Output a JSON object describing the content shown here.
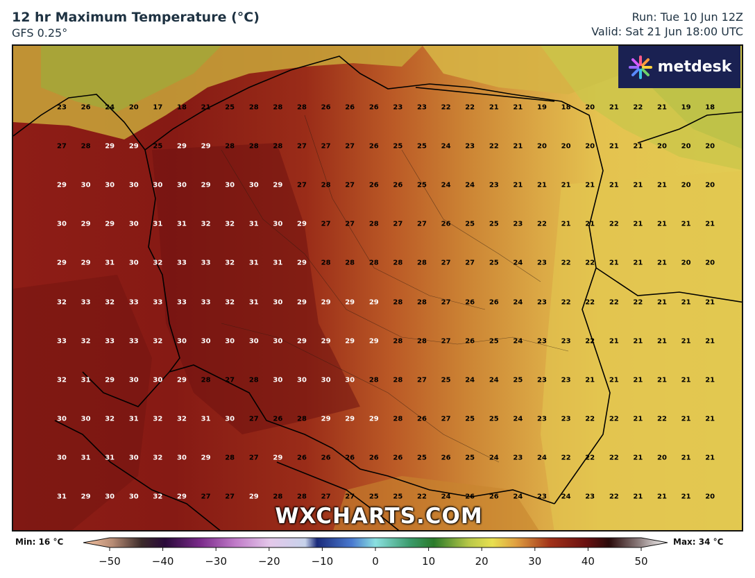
{
  "header": {
    "title": "12 hr Maximum Temperature (°C)",
    "model": "GFS 0.25°",
    "run": "Run: Tue 10 Jun 12Z",
    "valid": "Valid: Sat 21 Jun 18:00 UTC"
  },
  "logo": {
    "text": "metdesk"
  },
  "watermark": "WXCHARTS.COM",
  "colorbar": {
    "min_label": "Min: 16 °C",
    "max_label": "Max: 34 °C",
    "ticks": [
      "−50",
      "−40",
      "−30",
      "−20",
      "−10",
      "0",
      "10",
      "20",
      "30",
      "40",
      "50"
    ]
  },
  "grid_values": [
    [
      23,
      26,
      24,
      20,
      17,
      18,
      21,
      25,
      28,
      28,
      28,
      26,
      26,
      26,
      23,
      23,
      22,
      22,
      21,
      21,
      19,
      18,
      20,
      21,
      22,
      21,
      19,
      18
    ],
    [
      27,
      28,
      29,
      29,
      25,
      29,
      29,
      28,
      28,
      28,
      27,
      27,
      27,
      26,
      25,
      25,
      24,
      23,
      22,
      21,
      20,
      20,
      20,
      21,
      21,
      20,
      20,
      20
    ],
    [
      29,
      30,
      30,
      30,
      30,
      30,
      29,
      30,
      30,
      29,
      27,
      28,
      27,
      26,
      26,
      25,
      24,
      24,
      23,
      21,
      21,
      21,
      21,
      21,
      21,
      21,
      20,
      20
    ],
    [
      30,
      29,
      29,
      30,
      31,
      31,
      32,
      32,
      31,
      30,
      29,
      27,
      27,
      28,
      27,
      27,
      26,
      25,
      25,
      23,
      22,
      21,
      21,
      22,
      21,
      21,
      21,
      21
    ],
    [
      29,
      29,
      31,
      30,
      32,
      33,
      33,
      32,
      31,
      31,
      29,
      28,
      28,
      28,
      28,
      28,
      27,
      27,
      25,
      24,
      23,
      22,
      22,
      21,
      21,
      21,
      20,
      20
    ],
    [
      32,
      33,
      32,
      33,
      33,
      33,
      33,
      32,
      31,
      30,
      29,
      29,
      29,
      29,
      28,
      28,
      27,
      26,
      26,
      24,
      23,
      22,
      22,
      22,
      22,
      21,
      21,
      21
    ],
    [
      33,
      32,
      33,
      33,
      32,
      30,
      30,
      30,
      30,
      30,
      29,
      29,
      29,
      29,
      28,
      28,
      27,
      26,
      25,
      24,
      23,
      23,
      22,
      21,
      21,
      21,
      21,
      21
    ],
    [
      32,
      31,
      29,
      30,
      30,
      29,
      28,
      27,
      28,
      30,
      30,
      30,
      30,
      28,
      28,
      27,
      25,
      24,
      24,
      25,
      23,
      23,
      21,
      21,
      21,
      21,
      21,
      21
    ],
    [
      30,
      30,
      32,
      31,
      32,
      32,
      31,
      30,
      27,
      26,
      28,
      29,
      29,
      29,
      28,
      26,
      27,
      25,
      25,
      24,
      23,
      23,
      22,
      22,
      21,
      22,
      21,
      21
    ],
    [
      30,
      31,
      31,
      30,
      32,
      30,
      29,
      28,
      27,
      29,
      26,
      26,
      26,
      26,
      26,
      25,
      26,
      25,
      24,
      23,
      24,
      22,
      22,
      22,
      21,
      20,
      21,
      21
    ],
    [
      31,
      29,
      30,
      30,
      32,
      29,
      27,
      27,
      29,
      28,
      28,
      27,
      27,
      25,
      25,
      22,
      24,
      26,
      26,
      24,
      23,
      24,
      23,
      22,
      21,
      21,
      21,
      20
    ]
  ]
}
